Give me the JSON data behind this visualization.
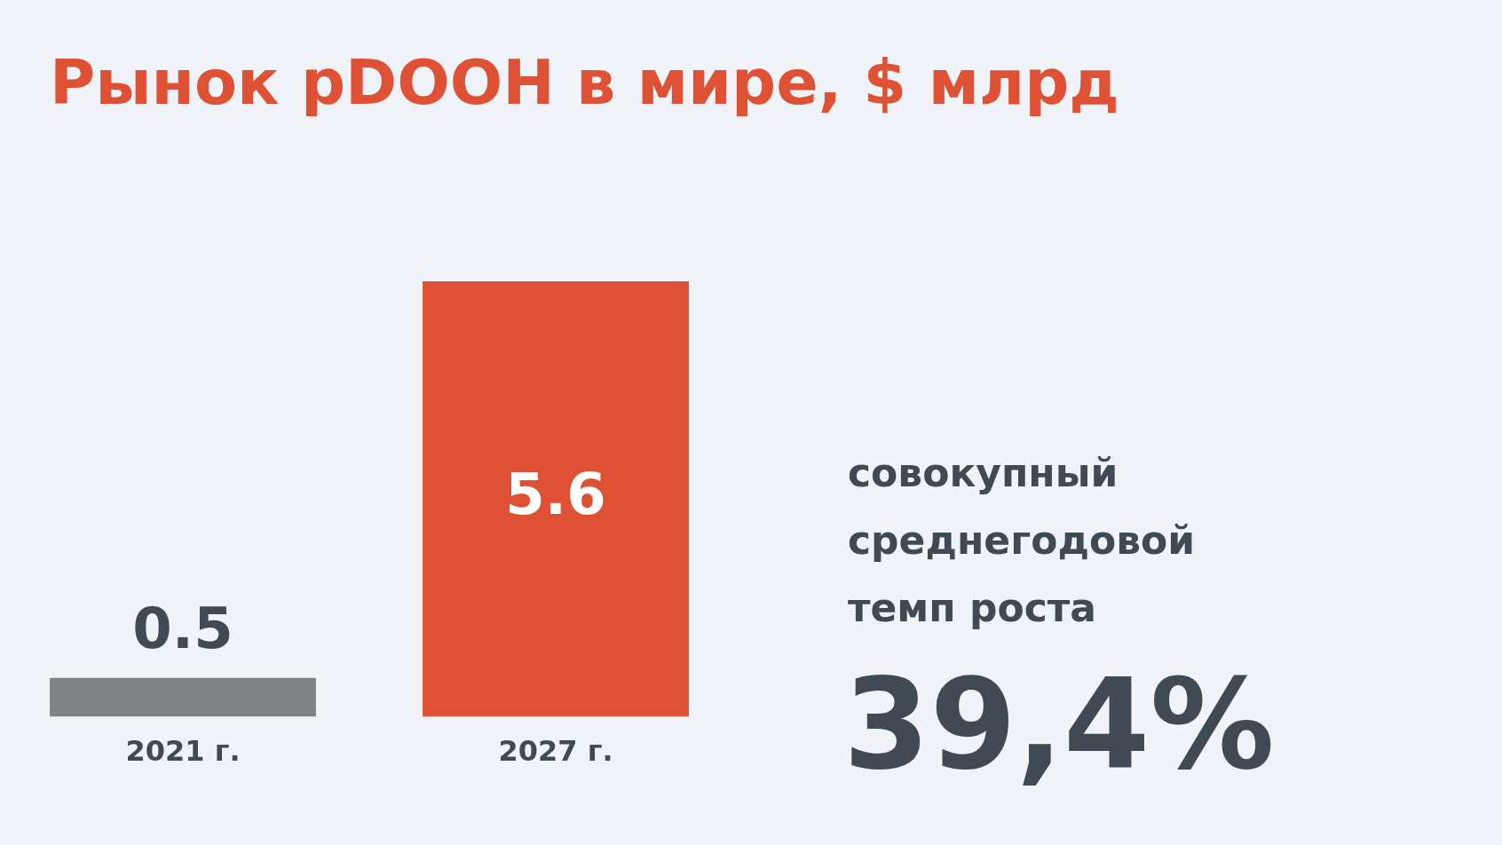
{
  "chart_data": {
    "type": "bar",
    "title": "Рынок pDOOH в мире, $ млрд",
    "categories": [
      "2021 г.",
      "2027 г."
    ],
    "values": [
      0.5,
      5.6
    ],
    "colors": [
      "#808386",
      "#de5134"
    ],
    "data_labels": true,
    "grid": false,
    "legend": false,
    "annotations": [
      "совокупный среднегодовой темп роста",
      "39,4%"
    ]
  }
}
